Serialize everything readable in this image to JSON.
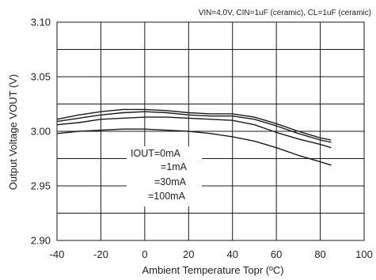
{
  "chart_data": {
    "type": "line",
    "title": "",
    "subtitle": "VIN=4.0V, CIN=1uF (ceramic), CL=1uF (ceramic)",
    "xlabel": "Ambient Temperature Topr (ºC)",
    "ylabel": "Output Voltage VOUT (V)",
    "xlim": [
      -40,
      100
    ],
    "ylim": [
      2.9,
      3.1
    ],
    "xticks": [
      -40,
      -20,
      0,
      20,
      40,
      60,
      80,
      100
    ],
    "xtick_labels": [
      "-40",
      "-20",
      "0",
      "20",
      "40",
      "60",
      "80",
      "100"
    ],
    "yticks": [
      2.9,
      2.95,
      3.0,
      3.05,
      3.1
    ],
    "ytick_labels": [
      "2.90",
      "2.95",
      "3.00",
      "3.05",
      "3.10"
    ],
    "grid": true,
    "line_color": "#1a1a1a",
    "legend_labels": [
      "IOUT=0mA",
      "=1mA",
      "=30mA",
      "=100mA"
    ],
    "series": [
      {
        "name": "IOUT=0mA",
        "x": [
          -40,
          -30,
          -20,
          -10,
          0,
          10,
          20,
          30,
          40,
          50,
          60,
          70,
          80,
          85
        ],
        "y": [
          3.011,
          3.015,
          3.018,
          3.02,
          3.02,
          3.019,
          3.017,
          3.016,
          3.016,
          3.013,
          3.007,
          3.0,
          2.994,
          2.992
        ]
      },
      {
        "name": "=1mA",
        "x": [
          -40,
          -30,
          -20,
          -10,
          0,
          10,
          20,
          30,
          40,
          50,
          60,
          70,
          80,
          85
        ],
        "y": [
          3.009,
          3.012,
          3.015,
          3.017,
          3.018,
          3.017,
          3.015,
          3.014,
          3.014,
          3.011,
          3.005,
          2.998,
          2.992,
          2.99
        ]
      },
      {
        "name": "=30mA",
        "x": [
          -40,
          -30,
          -20,
          -10,
          0,
          10,
          20,
          30,
          40,
          50,
          60,
          70,
          80,
          85
        ],
        "y": [
          3.006,
          3.008,
          3.011,
          3.012,
          3.013,
          3.013,
          3.012,
          3.011,
          3.01,
          3.006,
          2.999,
          2.993,
          2.988,
          2.985
        ]
      },
      {
        "name": "=100mA",
        "x": [
          -40,
          -30,
          -20,
          -10,
          0,
          10,
          20,
          30,
          40,
          50,
          60,
          70,
          80,
          85
        ],
        "y": [
          2.998,
          3.0,
          3.001,
          3.002,
          3.002,
          3.001,
          3.0,
          2.998,
          2.995,
          2.991,
          2.985,
          2.978,
          2.972,
          2.969
        ]
      }
    ]
  }
}
